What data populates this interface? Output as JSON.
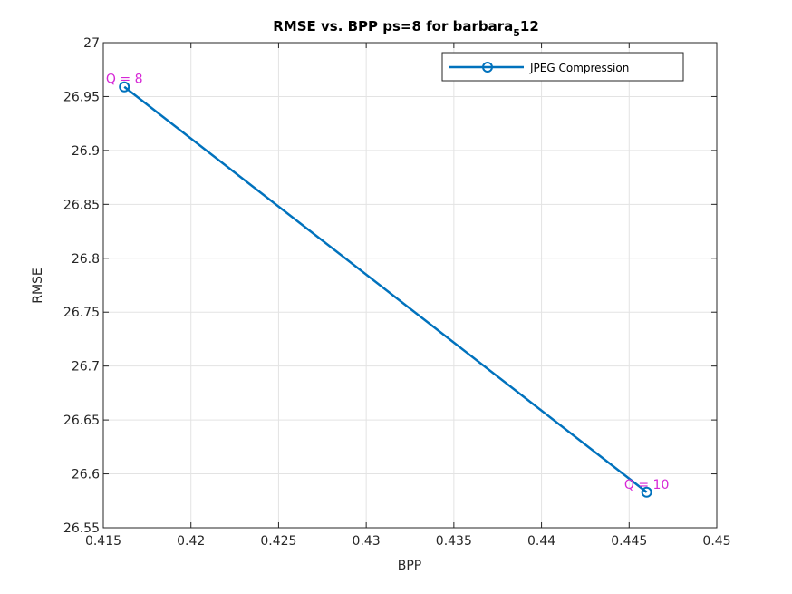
{
  "chart_data": {
    "type": "line",
    "title": "RMSE vs. BPP ps=8 for barbara",
    "title_subscript": "5",
    "title_tail": "12",
    "xlabel": "BPP",
    "ylabel": "RMSE",
    "xlim": [
      0.415,
      0.45
    ],
    "ylim": [
      26.55,
      27
    ],
    "x_ticks": [
      "0.415",
      "0.42",
      "0.425",
      "0.43",
      "0.435",
      "0.44",
      "0.445",
      "0.45"
    ],
    "y_ticks": [
      "26.55",
      "26.6",
      "26.65",
      "26.7",
      "26.75",
      "26.8",
      "26.85",
      "26.9",
      "26.95",
      "27"
    ],
    "grid": true,
    "legend_position": "top-right",
    "series": [
      {
        "name": "JPEG Compression",
        "color": "#0072bd",
        "marker": "circle",
        "x": [
          0.4162,
          0.446
        ],
        "y": [
          26.959,
          26.583
        ]
      }
    ],
    "annotations": [
      {
        "text": "Q = 8",
        "x": 0.4162,
        "y": 26.959,
        "color": "#d627d6"
      },
      {
        "text": "Q = 10",
        "x": 0.446,
        "y": 26.583,
        "color": "#d627d6"
      }
    ]
  }
}
